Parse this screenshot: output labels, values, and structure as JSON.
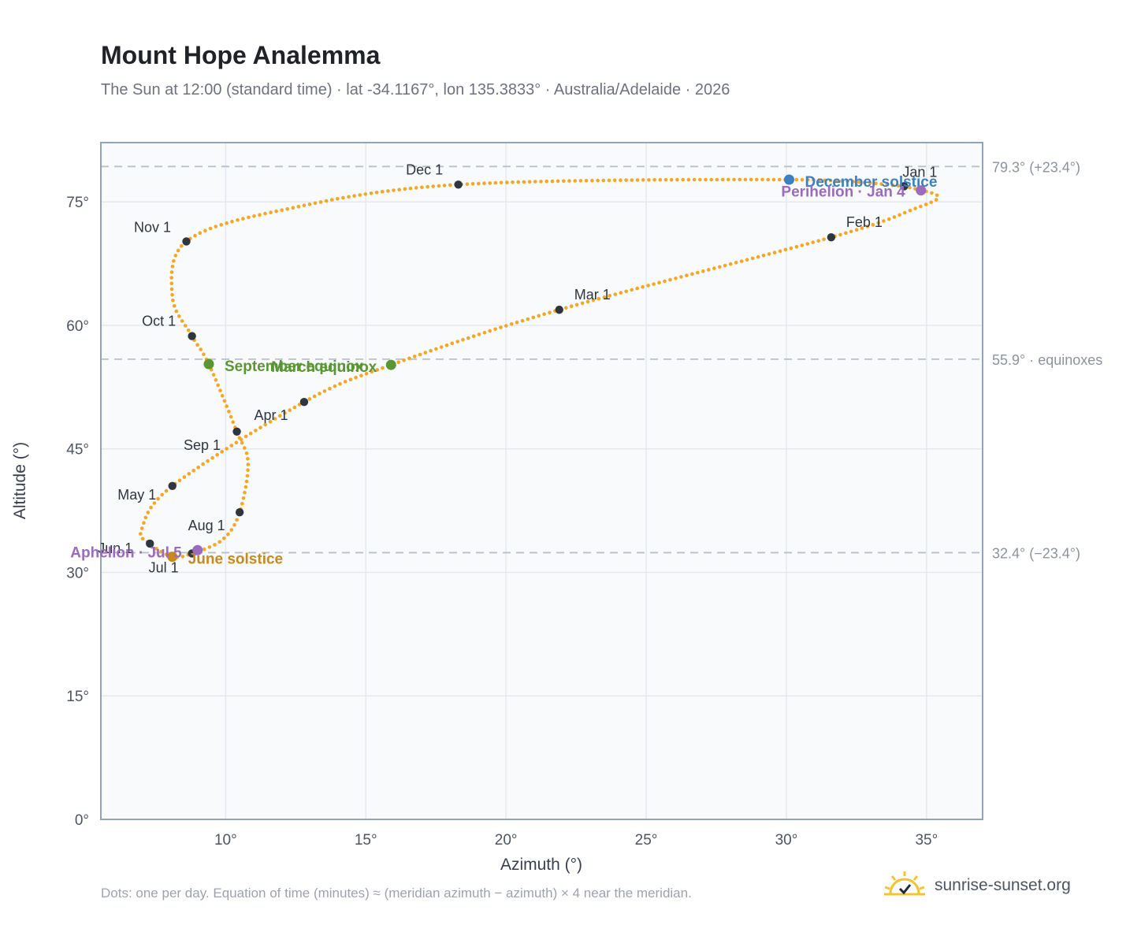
{
  "title": "Mount Hope Analemma",
  "subtitle": "The Sun at 12:00 (standard time) · lat -34.1167°, lon 135.3833° · Australia/Adelaide · 2026",
  "footnote": "Dots: one per day. Equation of time (minutes) ≈ (meridian azimuth − azimuth) × 4 near the meridian.",
  "brand": {
    "name": "sunrise-sunset.org",
    "icon": "sun-check-icon"
  },
  "colors": {
    "curve": "#f5a623",
    "month_marker": "#2f3640",
    "equinox": "#5a9632",
    "december_solstice": "#3b7fc4",
    "june_solstice": "#c8891e",
    "apsis": "#9b6bbd",
    "plot_bg": "#f8fafc",
    "grid": "#e5e9ef",
    "frame": "#94a3b8",
    "ref_line": "#b8c0cc"
  },
  "chart_data": {
    "type": "scatter",
    "xlabel": "Azimuth (°)",
    "ylabel": "Altitude (°)",
    "xlim": [
      5.55,
      37.0
    ],
    "ylim": [
      0,
      82.2
    ],
    "xticks": [
      10,
      15,
      20,
      25,
      30,
      35
    ],
    "xtick_labels": [
      "10°",
      "15°",
      "20°",
      "25°",
      "30°",
      "35°"
    ],
    "yticks": [
      0,
      15,
      30,
      45,
      60,
      75
    ],
    "ytick_labels": [
      "0°",
      "15°",
      "30°",
      "45°",
      "60°",
      "75°"
    ],
    "grid": true,
    "reference_lines": [
      {
        "altitude": 79.3,
        "label": "79.3° (+23.4°)"
      },
      {
        "altitude": 55.9,
        "label": "55.9° · equinoxes"
      },
      {
        "altitude": 32.4,
        "label": "32.4° (−23.4°)"
      }
    ],
    "curve_waypoints": [
      {
        "date": "Jan 1",
        "az": 34.2,
        "alt": 76.9
      },
      {
        "date": "Jan 10",
        "az": 35.4,
        "alt": 75.7
      },
      {
        "date": "Jan 18",
        "az": 34.6,
        "alt": 74.2
      },
      {
        "date": "Feb 1",
        "az": 31.6,
        "alt": 70.7
      },
      {
        "date": "Mar 1",
        "az": 21.9,
        "alt": 61.9
      },
      {
        "date": "Mar 20",
        "az": 15.9,
        "alt": 55.2
      },
      {
        "date": "Apr 1",
        "az": 12.8,
        "alt": 50.7
      },
      {
        "date": "May 1",
        "az": 8.1,
        "alt": 40.5
      },
      {
        "date": "May 20",
        "az": 7.0,
        "alt": 35.2
      },
      {
        "date": "Jun 1",
        "az": 7.3,
        "alt": 33.5
      },
      {
        "date": "Jun 21",
        "az": 8.1,
        "alt": 31.9
      },
      {
        "date": "Jul 1",
        "az": 8.8,
        "alt": 32.3
      },
      {
        "date": "Jul 15",
        "az": 9.9,
        "alt": 34.0
      },
      {
        "date": "Aug 1",
        "az": 10.5,
        "alt": 37.3
      },
      {
        "date": "Aug 20",
        "az": 10.8,
        "alt": 43.3
      },
      {
        "date": "Sep 1",
        "az": 10.4,
        "alt": 47.1
      },
      {
        "date": "Sep 23",
        "az": 9.4,
        "alt": 55.3
      },
      {
        "date": "Oct 1",
        "az": 8.8,
        "alt": 58.7
      },
      {
        "date": "Oct 15",
        "az": 8.1,
        "alt": 63.5
      },
      {
        "date": "Nov 1",
        "az": 8.6,
        "alt": 70.2
      },
      {
        "date": "Nov 15",
        "az": 12.0,
        "alt": 74.0
      },
      {
        "date": "Dec 1",
        "az": 18.3,
        "alt": 77.1
      },
      {
        "date": "Dec 21",
        "az": 30.1,
        "alt": 77.7
      },
      {
        "date": "Dec 31",
        "az": 34.2,
        "alt": 76.9
      }
    ],
    "month_markers": [
      {
        "label": "Jan 1",
        "az": 34.2,
        "alt": 76.9
      },
      {
        "label": "Feb 1",
        "az": 31.6,
        "alt": 70.7
      },
      {
        "label": "Mar 1",
        "az": 21.9,
        "alt": 61.9
      },
      {
        "label": "Apr 1",
        "az": 12.8,
        "alt": 50.7
      },
      {
        "label": "May 1",
        "az": 8.1,
        "alt": 40.5
      },
      {
        "label": "Jun 1",
        "az": 7.3,
        "alt": 33.5
      },
      {
        "label": "Jul 1",
        "az": 8.8,
        "alt": 32.3
      },
      {
        "label": "Aug 1",
        "az": 10.5,
        "alt": 37.3
      },
      {
        "label": "Sep 1",
        "az": 10.4,
        "alt": 47.1
      },
      {
        "label": "Oct 1",
        "az": 8.8,
        "alt": 58.7
      },
      {
        "label": "Nov 1",
        "az": 8.6,
        "alt": 70.2
      },
      {
        "label": "Dec 1",
        "az": 18.3,
        "alt": 77.1
      }
    ],
    "events": [
      {
        "label": "March equinox",
        "az": 15.9,
        "alt": 55.2,
        "kind": "equinox"
      },
      {
        "label": "September equinox",
        "az": 9.4,
        "alt": 55.3,
        "kind": "equinox"
      },
      {
        "label": "December solstice",
        "az": 30.1,
        "alt": 77.7,
        "kind": "december_solstice"
      },
      {
        "label": "June solstice",
        "az": 8.1,
        "alt": 31.9,
        "kind": "june_solstice"
      },
      {
        "label": "Perihelion · Jan 4",
        "az": 34.8,
        "alt": 76.4,
        "kind": "apsis"
      },
      {
        "label": "Aphelion · Jul 5",
        "az": 9.0,
        "alt": 32.7,
        "kind": "apsis"
      }
    ]
  }
}
